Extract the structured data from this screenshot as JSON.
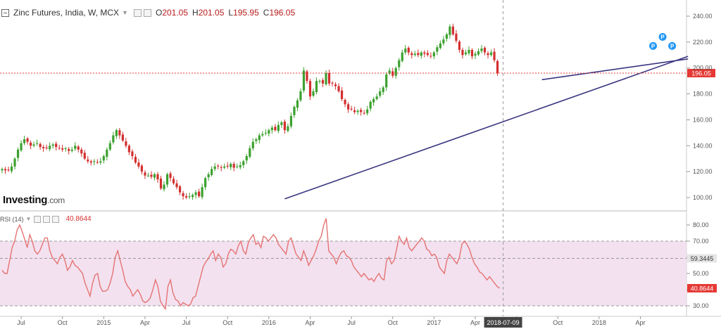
{
  "header": {
    "title": "Zinc Futures, India, W, MCX",
    "open_label": "O",
    "open": "201.05",
    "high_label": "H",
    "high": "201.05",
    "low_label": "L",
    "low": "195.95",
    "close_label": "C",
    "close": "196.05"
  },
  "brand": {
    "name": "Investing",
    "suffix": ".com"
  },
  "rsi_header": {
    "label": "RSI (14)",
    "value": "40.8644"
  },
  "chart_data": [
    {
      "type": "candlestick",
      "title": "Zinc Futures, India, W, MCX",
      "ylim": [
        88,
        246
      ],
      "yticks": [
        100,
        120,
        140,
        160,
        180,
        200,
        220,
        240
      ],
      "last_price": 196.05,
      "last_price_label": "196.05",
      "x_tick_labels": [
        "Jul",
        "Oct",
        "2015",
        "Apr",
        "Jul",
        "Oct",
        "2016",
        "Apr",
        "Jul",
        "Oct",
        "2017",
        "Apr",
        "Jul",
        "Oct",
        "2018",
        "Apr"
      ],
      "x_tick_weeks": [
        6,
        19,
        32,
        45,
        58,
        71,
        84,
        97,
        110,
        123,
        136,
        149,
        162,
        175,
        188,
        201
      ],
      "date_label": "2018-07-09",
      "pivot_markers": [
        "P",
        "P",
        "P"
      ],
      "trendlines": [
        {
          "from": {
            "week": 89,
            "price": 99
          },
          "to": {
            "week": 216,
            "price": 209
          }
        },
        {
          "from": {
            "week": 170,
            "price": 191
          },
          "to": {
            "week": 216,
            "price": 207
          }
        }
      ],
      "close": [
        122,
        121,
        121,
        124,
        130,
        137,
        142,
        145,
        143,
        140,
        141,
        142,
        139,
        138,
        138,
        140,
        141,
        139,
        138,
        137,
        138,
        136,
        137,
        140,
        137,
        134,
        130,
        128,
        127,
        128,
        127,
        128,
        132,
        137,
        142,
        148,
        152,
        148,
        144,
        140,
        135,
        132,
        127,
        124,
        120,
        117,
        117,
        116,
        118,
        114,
        107,
        110,
        118,
        115,
        111,
        108,
        104,
        101,
        100,
        101,
        102,
        104,
        101,
        108,
        115,
        118,
        122,
        124,
        124,
        123,
        124,
        124,
        126,
        123,
        124,
        125,
        128,
        132,
        138,
        143,
        145,
        148,
        149,
        150,
        152,
        154,
        152,
        156,
        158,
        152,
        155,
        163,
        170,
        175,
        182,
        198,
        190,
        178,
        182,
        190,
        190,
        188,
        196,
        188,
        188,
        186,
        182,
        176,
        172,
        168,
        168,
        166,
        167,
        166,
        165,
        168,
        174,
        176,
        178,
        182,
        185,
        195,
        198,
        194,
        200,
        206,
        212,
        215,
        212,
        210,
        211,
        210,
        212,
        211,
        210,
        209,
        212,
        216,
        219,
        222,
        226,
        232,
        226,
        221,
        214,
        210,
        212,
        214,
        209,
        211,
        213,
        215,
        212,
        210,
        212,
        206,
        196.05
      ]
    },
    {
      "type": "line",
      "title": "RSI (14)",
      "ylim": [
        25,
        84
      ],
      "yticks": [
        30,
        40,
        50,
        60,
        70,
        80
      ],
      "band": [
        30,
        70
      ],
      "mid": 59.3445,
      "mid_label": "59.3445",
      "last_label": "40.8644",
      "series": [
        {
          "values": [
            52,
            50,
            50,
            58,
            66,
            70,
            77,
            80,
            76,
            71,
            66,
            74,
            70,
            64,
            62,
            64,
            68,
            72,
            72,
            64,
            60,
            58,
            56,
            60,
            62,
            58,
            52,
            54,
            58,
            55,
            54,
            52,
            50,
            44,
            40,
            36,
            44,
            49,
            50,
            42,
            39,
            39,
            40,
            44,
            50,
            60,
            64,
            58,
            52,
            45,
            42,
            40,
            36,
            38,
            40,
            37,
            33,
            32,
            33,
            35,
            40,
            46,
            42,
            33,
            30,
            28,
            42,
            46,
            38,
            34,
            33,
            30,
            32,
            31,
            30,
            31,
            35,
            36,
            42,
            48,
            54,
            57,
            59,
            62,
            64,
            58,
            62,
            60,
            54,
            56,
            62,
            65,
            64,
            62,
            67,
            70,
            64,
            62,
            69,
            72,
            74,
            68,
            69,
            66,
            73,
            72,
            70,
            72,
            74,
            72,
            68,
            66,
            64,
            62,
            70,
            72,
            67,
            62,
            60,
            58,
            64,
            60,
            55,
            58,
            61,
            65,
            70,
            73,
            80,
            84,
            64,
            62,
            60,
            56,
            60,
            63,
            64,
            61,
            60,
            58,
            54,
            52,
            50,
            48,
            50,
            48,
            46,
            47,
            45,
            48,
            50,
            47,
            46,
            58,
            60,
            56,
            58,
            65,
            73,
            70,
            68,
            72,
            66,
            64,
            66,
            68,
            70,
            72,
            70,
            65,
            64,
            61,
            62,
            60,
            54,
            52,
            50,
            58,
            62,
            60,
            58,
            56,
            60,
            68,
            70,
            68,
            65,
            60,
            56,
            54,
            51,
            50,
            48,
            46,
            48,
            46,
            44,
            42,
            40.8644
          ]
        }
      ]
    }
  ]
}
